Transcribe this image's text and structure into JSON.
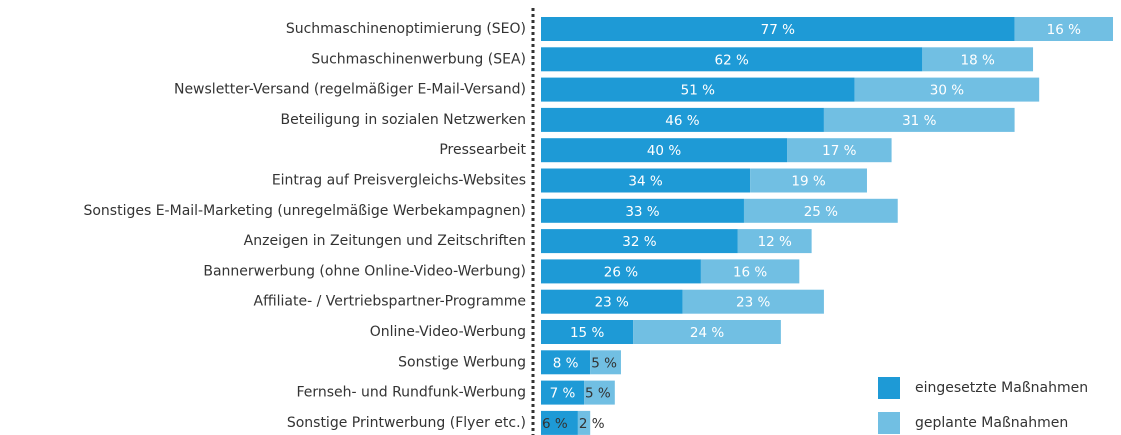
{
  "chart_data": {
    "type": "stacked-bar-horizontal",
    "categories": [
      "Suchmaschinenoptimierung (SEO)",
      "Suchmaschinenwerbung (SEA)",
      "Newsletter-Versand (regelmäßiger E-Mail-Versand)",
      "Beteiligung in sozialen Netzwerken",
      "Pressearbeit",
      "Eintrag auf Preisvergleichs-Websites",
      "Sonstiges E-Mail-Marketing (unregelmäßige Werbekampagnen)",
      "Anzeigen in Zeitungen und Zeitschriften",
      "Bannerwerbung (ohne Online-Video-Werbung)",
      "Affiliate- / Vertriebspartner-Programme",
      "Online-Video-Werbung",
      "Sonstige Werbung",
      "Fernseh- und Rundfunk-Werbung",
      "Sonstige Printwerbung (Flyer etc.)"
    ],
    "series": [
      {
        "name": "eingesetzte Maßnahmen",
        "color": "#1e9ad6",
        "values": [
          77,
          62,
          51,
          46,
          40,
          34,
          33,
          32,
          26,
          23,
          15,
          8,
          7,
          6
        ],
        "value_labels": [
          "77 %",
          "62 %",
          "51 %",
          "46 %",
          "40 %",
          "34 %",
          "33 %",
          "32 %",
          "26 %",
          "23 %",
          "15 %",
          "8 %",
          "7 %",
          "6 %"
        ]
      },
      {
        "name": "geplante Maßnahmen",
        "color": "#71bfe3",
        "values": [
          16,
          18,
          30,
          31,
          17,
          19,
          25,
          12,
          16,
          23,
          24,
          5,
          5,
          2
        ],
        "value_labels": [
          "16 %",
          "18 %",
          "30 %",
          "31 %",
          "17 %",
          "19 %",
          "25 %",
          "12 %",
          "16 %",
          "23 %",
          "24 %",
          "5 %",
          "5 %",
          "2 %"
        ]
      }
    ],
    "legend": "bottom-right"
  }
}
